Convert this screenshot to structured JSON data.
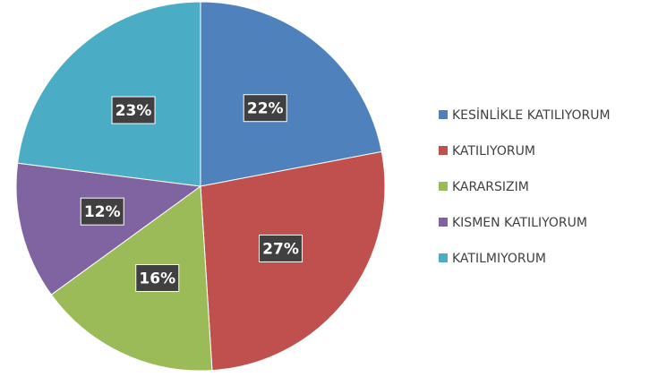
{
  "chart_data": {
    "type": "pie",
    "categories": [
      "KESİNLİKLE KATILIYORUM",
      "KATILIYORUM",
      "KARARSIZIM",
      "KISMEN KATILIYORUM",
      "KATILMIYORUM"
    ],
    "values": [
      22,
      27,
      16,
      12,
      23
    ],
    "value_labels": [
      "22%",
      "27%",
      "16%",
      "12%",
      "23%"
    ],
    "colors": [
      "#4f81bd",
      "#c0504d",
      "#9bbb59",
      "#8064a2",
      "#4bacc6"
    ],
    "legend": "right"
  }
}
